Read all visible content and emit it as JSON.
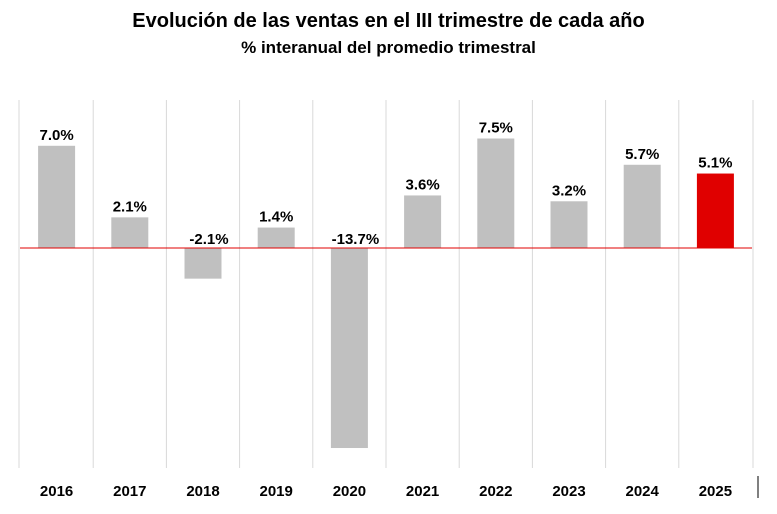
{
  "chart_data": {
    "type": "bar",
    "title": "Evolución de las ventas en el III trimestre de cada año",
    "subtitle": "% interanual del promedio trimestral",
    "xlabel": "",
    "ylabel": "",
    "categories": [
      "2016",
      "2017",
      "2018",
      "2019",
      "2020",
      "2021",
      "2022",
      "2023",
      "2024",
      "2025"
    ],
    "values": [
      7.0,
      2.1,
      -2.1,
      1.4,
      -13.7,
      3.6,
      7.5,
      3.2,
      5.7,
      5.1
    ],
    "data_labels": [
      "7.0%",
      "2.1%",
      "-2.1%",
      "1.4%",
      "-13.7%",
      "3.6%",
      "7.5%",
      "3.2%",
      "5.7%",
      "5.1%"
    ],
    "ylim": [
      -15,
      10
    ],
    "grid": "vertical separators",
    "legend": "none",
    "colors": {
      "bar": "#c0c0c0",
      "highlight": "#e00000",
      "baseline": "#e00000",
      "gridline": "#d9d9d9"
    },
    "highlight_index": 9
  }
}
